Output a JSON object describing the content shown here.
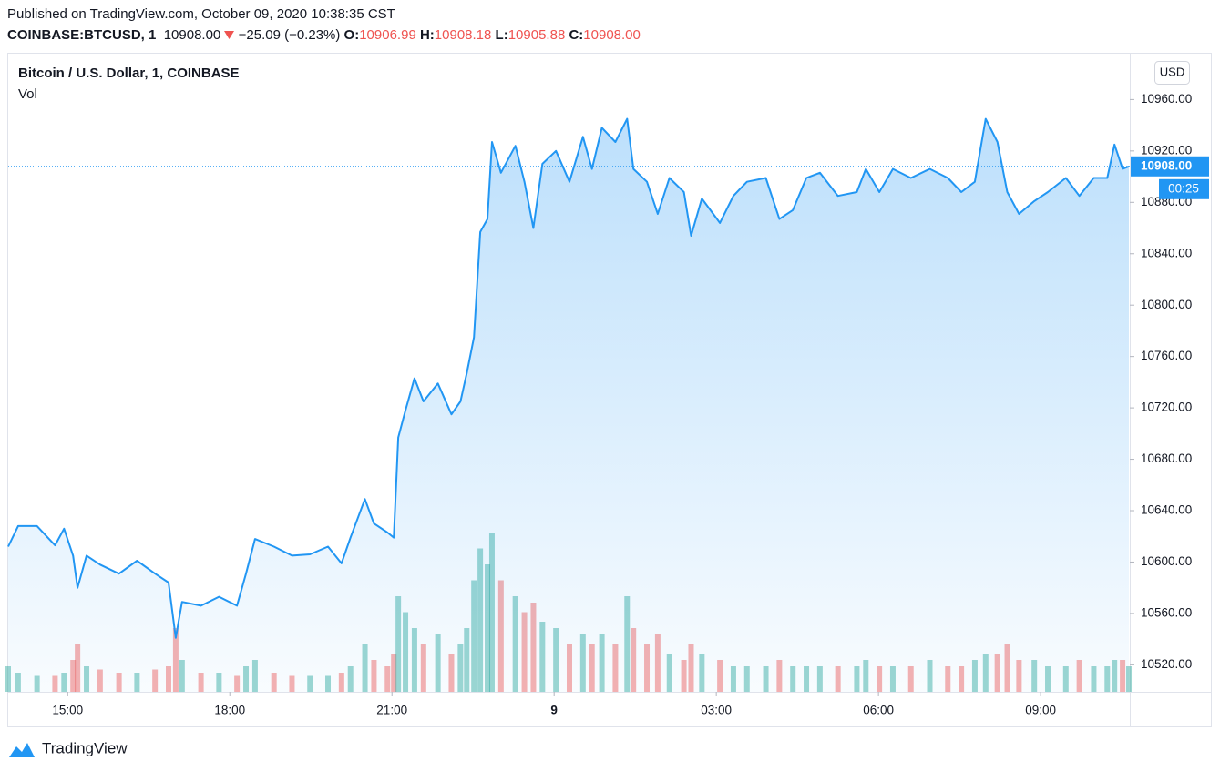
{
  "header": {
    "published": "Published on TradingView.com, October 09, 2020 10:38:35 CST",
    "symbol": "COINBASE:BTCUSD, 1",
    "last": "10908.00",
    "change": "−25.09 (−0.23%)",
    "o_label": "O:",
    "o": "10906.99",
    "h_label": "H:",
    "h": "10908.18",
    "l_label": "L:",
    "l": "10905.88",
    "c_label": "C:",
    "c": "10908.00"
  },
  "chart_data": {
    "type": "area",
    "title": "Bitcoin / U.S. Dollar, 1, COINBASE",
    "volume_label": "Vol",
    "currency": "USD",
    "color": "#2196f3",
    "up_color": "#26a69a",
    "down_color": "#ef5350",
    "grid": true,
    "x": [
      "13:54",
      "14:05",
      "14:26",
      "14:46",
      "14:56",
      "15:06",
      "15:11",
      "15:21",
      "15:36",
      "15:57",
      "16:17",
      "16:37",
      "16:52",
      "17:00",
      "17:07",
      "17:28",
      "17:48",
      "18:08",
      "18:18",
      "18:28",
      "18:49",
      "19:09",
      "19:29",
      "19:49",
      "20:04",
      "20:14",
      "20:30",
      "20:40",
      "20:55",
      "21:02",
      "21:07",
      "21:15",
      "21:25",
      "21:35",
      "21:51",
      "22:06",
      "22:16",
      "22:23",
      "22:31",
      "22:38",
      "22:46",
      "22:51",
      "23:01",
      "23:17",
      "23:27",
      "23:37",
      "23:47",
      "00:02",
      "00:17",
      "00:32",
      "00:42",
      "00:53",
      "01:08",
      "01:21",
      "01:28",
      "01:43",
      "01:55",
      "02:08",
      "02:24",
      "02:32",
      "02:44",
      "03:04",
      "03:19",
      "03:34",
      "03:55",
      "04:10",
      "04:25",
      "04:40",
      "04:55",
      "05:15",
      "05:36",
      "05:46",
      "06:01",
      "06:16",
      "06:36",
      "06:57",
      "07:17",
      "07:32",
      "07:47",
      "07:59",
      "08:12",
      "08:23",
      "08:36",
      "08:53",
      "09:08",
      "09:28",
      "09:43",
      "09:59",
      "10:14",
      "10:22",
      "10:31",
      "10:38"
    ],
    "values": [
      10612,
      10628,
      10628,
      10613,
      10626,
      10605,
      10580,
      10605,
      10598,
      10591,
      10601,
      10591,
      10584,
      10541,
      10569,
      10566,
      10573,
      10566,
      10591,
      10618,
      10612,
      10605,
      10606,
      10612,
      10599,
      10619,
      10649,
      10630,
      10623,
      10619,
      10697,
      10718,
      10743,
      10725,
      10739,
      10715,
      10725,
      10747,
      10775,
      10857,
      10867,
      10927,
      10903,
      10924,
      10896,
      10860,
      10910,
      10920,
      10896,
      10931,
      10906,
      10938,
      10927,
      10945,
      10906,
      10896,
      10871,
      10899,
      10888,
      10854,
      10883,
      10864,
      10885,
      10896,
      10899,
      10867,
      10874,
      10899,
      10903,
      10885,
      10888,
      10906,
      10888,
      10906,
      10899,
      10906,
      10899,
      10888,
      10896,
      10945,
      10927,
      10888,
      10871,
      10881,
      10888,
      10899,
      10885,
      10899,
      10899,
      10925,
      10906,
      10908
    ],
    "volume": [
      8,
      6,
      5,
      5,
      6,
      10,
      15,
      8,
      7,
      6,
      6,
      7,
      8,
      20,
      10,
      6,
      6,
      5,
      8,
      10,
      6,
      5,
      5,
      5,
      6,
      8,
      15,
      10,
      8,
      12,
      30,
      25,
      20,
      15,
      18,
      12,
      15,
      20,
      35,
      45,
      40,
      50,
      35,
      30,
      25,
      28,
      22,
      20,
      15,
      18,
      15,
      18,
      15,
      30,
      20,
      15,
      18,
      12,
      10,
      15,
      12,
      10,
      8,
      8,
      8,
      10,
      8,
      8,
      8,
      8,
      8,
      10,
      8,
      8,
      8,
      10,
      8,
      8,
      10,
      12,
      12,
      15,
      10,
      10,
      8,
      8,
      10,
      8,
      8,
      10,
      10,
      8
    ],
    "xlim": [
      "13:54",
      "10:39"
    ],
    "xticks": [
      "15:00",
      "18:00",
      "21:00",
      {
        "value": "00:00",
        "label": "9"
      },
      "03:00",
      "06:00",
      "09:00"
    ],
    "ylim": [
      10499,
      10995
    ],
    "yticks": [
      {
        "value": 10520,
        "label": "10520.00"
      },
      {
        "value": 10560,
        "label": "10560.00"
      },
      {
        "value": 10600,
        "label": "10600.00"
      },
      {
        "value": 10640,
        "label": "10640.00"
      },
      {
        "value": 10680,
        "label": "10680.00"
      },
      {
        "value": 10720,
        "label": "10720.00"
      },
      {
        "value": 10760,
        "label": "10760.00"
      },
      {
        "value": 10800,
        "label": "10800.00"
      },
      {
        "value": 10840,
        "label": "10840.00"
      },
      {
        "value": 10880,
        "label": "10880.00"
      },
      {
        "value": 10920,
        "label": "10920.00"
      },
      {
        "value": 10960,
        "label": "10960.00"
      }
    ],
    "last_price": {
      "value": 10908,
      "label": "10908.00"
    },
    "countdown": "00:25"
  },
  "footer": {
    "brand": "TradingView"
  }
}
